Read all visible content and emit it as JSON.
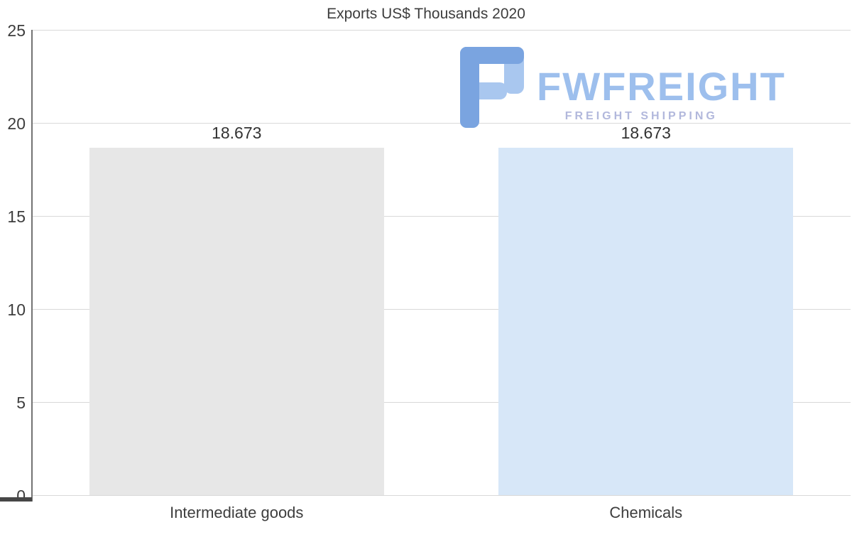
{
  "chart_data": {
    "type": "bar",
    "title": "Exports US$ Thousands 2020",
    "categories": [
      "Intermediate goods",
      "Chemicals"
    ],
    "values": [
      18.673,
      18.673
    ],
    "value_labels": [
      "18.673",
      "18.673"
    ],
    "bar_colors": [
      "#e7e7e7",
      "#d7e7f8"
    ],
    "ylim": [
      0,
      25
    ],
    "y_ticks": [
      0,
      5,
      10,
      15,
      20,
      25
    ],
    "grid": "horizontal",
    "legend": "none",
    "xlabel": "",
    "ylabel": ""
  },
  "logo": {
    "name": "FWFREIGHT",
    "subtitle": "FREIGHT SHIPPING",
    "text_color": "#9dbfed",
    "subtitle_color": "#b2b8dc",
    "mark_color_dark": "#7aa4e0",
    "mark_color_light": "#a9c7ef"
  },
  "colors": {
    "grid": "#d9d9d9",
    "axis": "#737373",
    "text": "#3d3d3d"
  }
}
